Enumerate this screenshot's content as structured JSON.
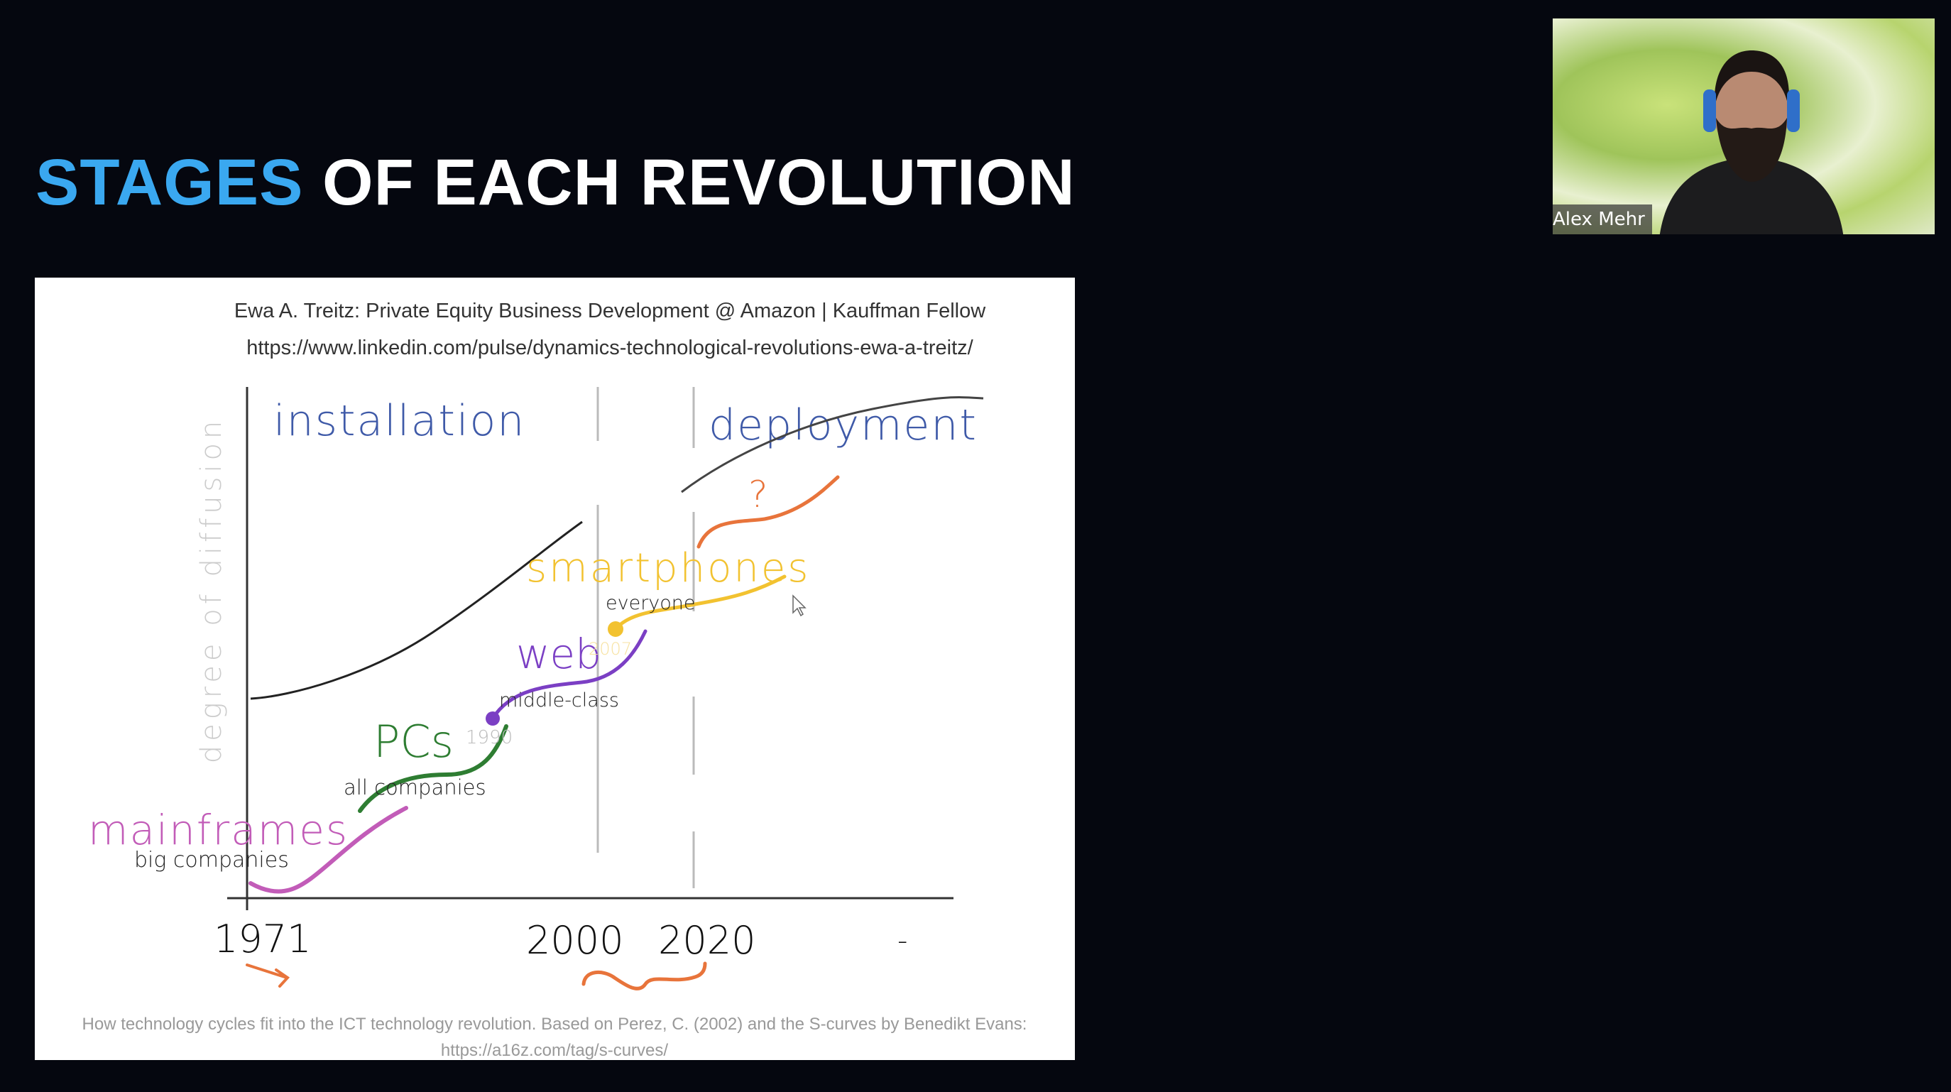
{
  "slide_title": {
    "accent": "STAGES",
    "rest": " OF EACH REVOLUTION",
    "accent_color": "#3aa8f0"
  },
  "figure": {
    "attribution": "Ewa A. Treitz: Private Equity Business Development @ Amazon | Kauffman Fellow",
    "source_url": "https://www.linkedin.com/pulse/dynamics-technological-revolutions-ewa-a-treitz/",
    "y_axis_label": "degree of diffusion",
    "phases": [
      "installation",
      "deployment"
    ],
    "years": [
      "1971",
      "2000",
      "2020",
      "-"
    ],
    "waves": [
      {
        "name": "mainframes",
        "audience": "big companies",
        "color": "#c25cb8"
      },
      {
        "name": "PCs",
        "audience": "all companies",
        "year": "1990",
        "color": "#2e7d32"
      },
      {
        "name": "web",
        "audience": "middle-class",
        "color": "#7b3fc4"
      },
      {
        "name": "smartphones",
        "audience": "everyone",
        "year": "2007",
        "color": "#f2c230"
      },
      {
        "name": "?",
        "color": "#e8743b"
      }
    ],
    "caption_line1": "How technology cycles fit into the ICT technology revolution. Based on Perez, C. (2002) and the S-curves by Benedikt Evans:",
    "caption_line2": "https://a16z.com/tag/s-curves/"
  },
  "participant": {
    "name": "Alex Mehr"
  }
}
